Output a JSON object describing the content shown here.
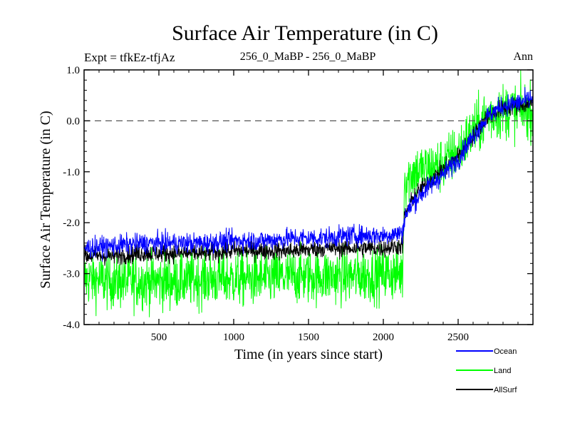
{
  "header": {
    "title": "Surface Air Temperature (in C)",
    "left_label": "Expt = tfkEz-tfjAz",
    "center_label": "256_0_MaBP - 256_0_MaBP",
    "right_label": "Ann"
  },
  "chart_data": {
    "type": "line",
    "title": "Surface Air Temperature (in C)",
    "xlabel": "Time (in years since start)",
    "ylabel": "Surface Air Temperature (in C)",
    "xlim": [
      0,
      3000
    ],
    "ylim": [
      -4.0,
      1.0
    ],
    "x_ticks": [
      500,
      1000,
      1500,
      2000,
      2500
    ],
    "y_ticks": [
      -4.0,
      -3.0,
      -2.0,
      -1.0,
      0.0,
      1.0
    ],
    "y_tick_labels": [
      "-4.0",
      "-3.0",
      "-2.0",
      "-1.0",
      "0.0",
      "1.0"
    ],
    "reference_line": {
      "y": 0.0,
      "style": "dashed"
    },
    "grid": false,
    "legend_position": "bottom-right, outside plot",
    "series": [
      {
        "name": "Land",
        "color": "#00ff00",
        "noise": 0.55,
        "x": [
          0,
          200,
          400,
          600,
          800,
          1000,
          1200,
          1400,
          1600,
          1800,
          2000,
          2130,
          2140,
          2200,
          2300,
          2400,
          2500,
          2600,
          2700,
          2800,
          2900,
          3000
        ],
        "values": [
          -3.1,
          -3.15,
          -3.15,
          -3.15,
          -3.1,
          -3.1,
          -3.1,
          -3.05,
          -3.05,
          -3.05,
          -3.0,
          -3.0,
          -1.2,
          -1.0,
          -0.95,
          -0.85,
          -0.6,
          -0.2,
          0.1,
          0.2,
          0.2,
          0.2
        ]
      },
      {
        "name": "AllSurf",
        "color": "#000000",
        "noise": 0.18,
        "x": [
          0,
          200,
          400,
          600,
          800,
          1000,
          1200,
          1400,
          1600,
          1800,
          2000,
          2130,
          2140,
          2200,
          2300,
          2400,
          2500,
          2600,
          2700,
          2800,
          2900,
          3000
        ],
        "values": [
          -2.65,
          -2.65,
          -2.6,
          -2.6,
          -2.6,
          -2.55,
          -2.55,
          -2.55,
          -2.5,
          -2.5,
          -2.5,
          -2.45,
          -1.9,
          -1.5,
          -1.2,
          -0.95,
          -0.7,
          -0.3,
          0.1,
          0.25,
          0.3,
          0.35
        ]
      },
      {
        "name": "Ocean",
        "color": "#0000ff",
        "noise": 0.2,
        "x": [
          0,
          200,
          400,
          600,
          800,
          1000,
          1200,
          1400,
          1600,
          1800,
          2000,
          2130,
          2140,
          2200,
          2300,
          2400,
          2500,
          2600,
          2700,
          2800,
          2900,
          3000
        ],
        "values": [
          -2.5,
          -2.45,
          -2.4,
          -2.4,
          -2.4,
          -2.35,
          -2.35,
          -2.3,
          -2.3,
          -2.25,
          -2.25,
          -2.2,
          -1.9,
          -1.6,
          -1.3,
          -1.05,
          -0.75,
          -0.3,
          0.1,
          0.3,
          0.35,
          0.45
        ]
      }
    ],
    "legend": [
      {
        "name": "Ocean",
        "color": "#0000ff"
      },
      {
        "name": "Land",
        "color": "#00ff00"
      },
      {
        "name": "AllSurf",
        "color": "#000000"
      }
    ]
  }
}
